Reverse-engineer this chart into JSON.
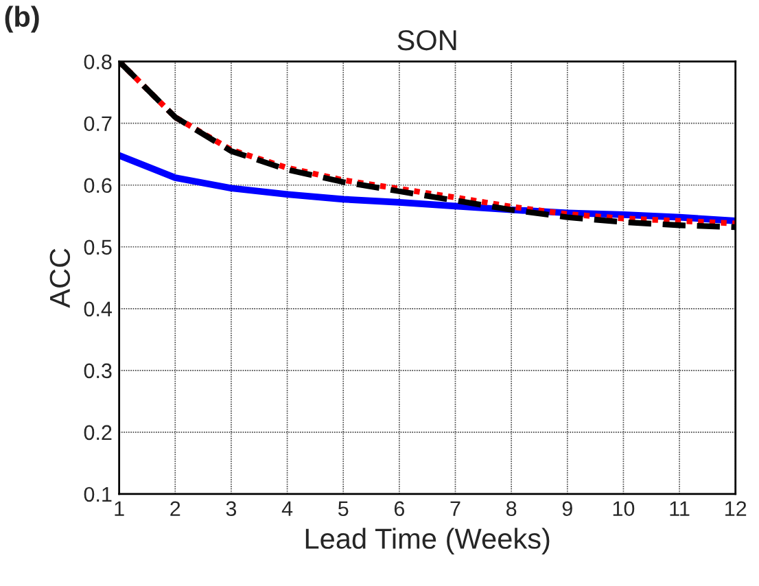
{
  "chart_data": {
    "type": "line",
    "title": "SON",
    "xlabel": "Lead Time (Weeks)",
    "ylabel": "ACC",
    "annotations": [
      "(b)"
    ],
    "x": [
      1,
      2,
      3,
      4,
      5,
      6,
      7,
      8,
      9,
      10,
      11,
      12
    ],
    "series": [
      {
        "color": "#0000ff",
        "line_style": "solid",
        "values": [
          0.648,
          0.612,
          0.595,
          0.585,
          0.577,
          0.572,
          0.566,
          0.56,
          0.555,
          0.552,
          0.548,
          0.542
        ]
      },
      {
        "color": "#ff0000",
        "line_style": "dotted",
        "values": [
          0.8,
          0.71,
          0.657,
          0.628,
          0.608,
          0.594,
          0.58,
          0.565,
          0.553,
          0.546,
          0.542,
          0.538
        ]
      },
      {
        "color": "#000000",
        "line_style": "dashed",
        "values": [
          0.8,
          0.71,
          0.655,
          0.625,
          0.605,
          0.59,
          0.575,
          0.56,
          0.548,
          0.54,
          0.535,
          0.532
        ]
      }
    ],
    "xlim": [
      1,
      12
    ],
    "xticks": [
      1,
      2,
      3,
      4,
      5,
      6,
      7,
      8,
      9,
      10,
      11,
      12
    ],
    "ylim": [
      0.1,
      0.8
    ],
    "yticks": [
      0.1,
      0.2,
      0.3,
      0.4,
      0.5,
      0.6,
      0.7,
      0.8
    ],
    "grid": true,
    "marker": "none"
  }
}
